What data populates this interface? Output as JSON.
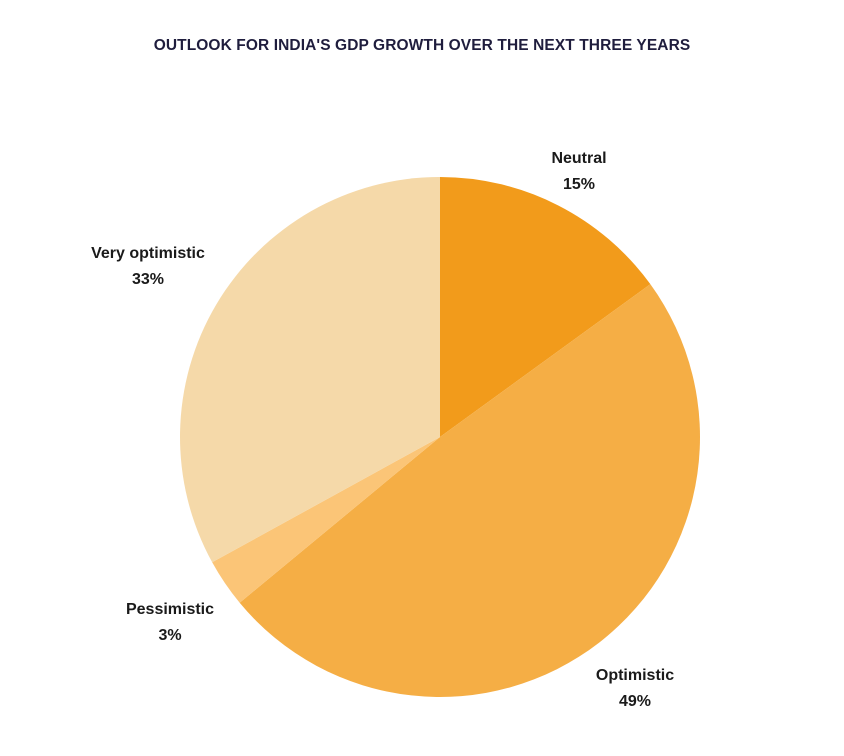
{
  "chart_data": {
    "type": "pie",
    "title": "OUTLOOK FOR INDIA'S GDP GROWTH OVER THE NEXT THREE YEARS",
    "start": "12 o'clock",
    "direction": "clockwise",
    "slices": [
      {
        "label": "Neutral",
        "value": 15,
        "value_label": "15%",
        "color": "#f29b1b"
      },
      {
        "label": "Optimistic",
        "value": 49,
        "value_label": "49%",
        "color": "#f5ae45"
      },
      {
        "label": "Pessimistic",
        "value": 3,
        "value_label": "3%",
        "color": "#fbc577"
      },
      {
        "label": "Very optimistic",
        "value": 33,
        "value_label": "33%",
        "color": "#f5d9a9"
      }
    ]
  }
}
